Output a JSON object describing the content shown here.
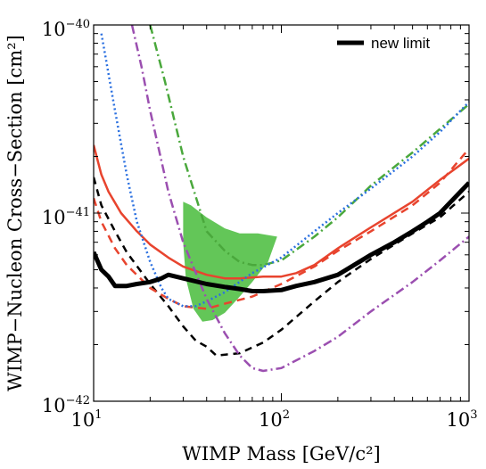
{
  "chart_data": {
    "type": "line",
    "x_scale": "log",
    "y_scale": "log",
    "xlim": [
      10,
      1000
    ],
    "ylim": [
      1e-42,
      1e-40
    ],
    "xlabel": "WIMP Mass [GeV/c²]",
    "ylabel": "WIMP−Nucleon Cross−Section [cm²]",
    "x_ticks": [
      {
        "base": "10",
        "exp": "1",
        "value": 10
      },
      {
        "base": "10",
        "exp": "2",
        "value": 100
      },
      {
        "base": "10",
        "exp": "3",
        "value": 1000
      }
    ],
    "y_ticks": [
      {
        "base": "10",
        "exp": "−42",
        "value": 1e-42
      },
      {
        "base": "10",
        "exp": "−41",
        "value": 1e-41
      },
      {
        "base": "10",
        "exp": "−40",
        "value": 1e-40
      }
    ],
    "grid": false,
    "legend": {
      "position": "top-right",
      "entries": [
        {
          "label": "new limit",
          "series": "new-limit"
        }
      ]
    },
    "series": [
      {
        "id": "new-limit",
        "name": "new limit",
        "color": "#000000",
        "width": 5,
        "dash": "",
        "points": [
          [
            10,
            6.2e-42
          ],
          [
            11,
            5e-42
          ],
          [
            12,
            4.6e-42
          ],
          [
            13,
            4.1e-42
          ],
          [
            15,
            4.1e-42
          ],
          [
            17,
            4.2e-42
          ],
          [
            20,
            4.3e-42
          ],
          [
            23,
            4.5e-42
          ],
          [
            25,
            4.7e-42
          ],
          [
            30,
            4.5e-42
          ],
          [
            40,
            4.2e-42
          ],
          [
            50,
            4.05e-42
          ],
          [
            60,
            3.95e-42
          ],
          [
            70,
            3.85e-42
          ],
          [
            80,
            3.85e-42
          ],
          [
            100,
            3.9e-42
          ],
          [
            120,
            4.1e-42
          ],
          [
            150,
            4.3e-42
          ],
          [
            200,
            4.7e-42
          ],
          [
            300,
            6e-42
          ],
          [
            400,
            7e-42
          ],
          [
            500,
            8e-42
          ],
          [
            600,
            9e-42
          ],
          [
            700,
            1e-41
          ],
          [
            800,
            1.15e-41
          ],
          [
            900,
            1.3e-41
          ],
          [
            1000,
            1.45e-41
          ]
        ]
      },
      {
        "id": "black-dashed",
        "color": "#000000",
        "width": 2.5,
        "dash": "8,6",
        "points": [
          [
            10,
            1.55e-41
          ],
          [
            11,
            1.1e-41
          ],
          [
            13,
            8e-42
          ],
          [
            15,
            6.2e-42
          ],
          [
            20,
            4.2e-42
          ],
          [
            25,
            3.2e-42
          ],
          [
            30,
            2.5e-42
          ],
          [
            35,
            2.1e-42
          ],
          [
            40,
            1.95e-42
          ],
          [
            45,
            1.75e-42
          ],
          [
            60,
            1.8e-42
          ],
          [
            80,
            2.05e-42
          ],
          [
            100,
            2.4e-42
          ],
          [
            150,
            3.4e-42
          ],
          [
            200,
            4.3e-42
          ],
          [
            300,
            5.7e-42
          ],
          [
            500,
            7.8e-42
          ],
          [
            700,
            9.5e-42
          ],
          [
            1000,
            1.3e-41
          ]
        ]
      },
      {
        "id": "orange-solid",
        "color": "#e8442e",
        "width": 2.5,
        "dash": "",
        "points": [
          [
            10,
            2.3e-41
          ],
          [
            11,
            1.6e-41
          ],
          [
            12,
            1.3e-41
          ],
          [
            14,
            1e-41
          ],
          [
            17,
            8e-42
          ],
          [
            20,
            6.8e-42
          ],
          [
            25,
            5.8e-42
          ],
          [
            30,
            5.2e-42
          ],
          [
            40,
            4.7e-42
          ],
          [
            50,
            4.5e-42
          ],
          [
            60,
            4.5e-42
          ],
          [
            80,
            4.6e-42
          ],
          [
            100,
            4.6e-42
          ],
          [
            120,
            4.8e-42
          ],
          [
            150,
            5.3e-42
          ],
          [
            200,
            6.5e-42
          ],
          [
            300,
            8.4e-42
          ],
          [
            500,
            1.15e-41
          ],
          [
            700,
            1.5e-41
          ],
          [
            1000,
            1.95e-41
          ]
        ]
      },
      {
        "id": "orange-dashed",
        "color": "#e8442e",
        "width": 2.5,
        "dash": "9,6",
        "points": [
          [
            10,
            1.2e-41
          ],
          [
            11,
            9e-42
          ],
          [
            13,
            6.5e-42
          ],
          [
            15,
            5.3e-42
          ],
          [
            20,
            4e-42
          ],
          [
            25,
            3.5e-42
          ],
          [
            30,
            3.2e-42
          ],
          [
            40,
            3.1e-42
          ],
          [
            50,
            3.3e-42
          ],
          [
            70,
            3.6e-42
          ],
          [
            100,
            4.2e-42
          ],
          [
            150,
            5.2e-42
          ],
          [
            200,
            6.3e-42
          ],
          [
            300,
            8e-42
          ],
          [
            500,
            1.1e-41
          ],
          [
            700,
            1.45e-41
          ],
          [
            1000,
            2.2e-41
          ]
        ]
      },
      {
        "id": "green-dashdot",
        "color": "#4aa83c",
        "width": 2.5,
        "dash": "10,4,2,4",
        "points": [
          [
            20,
            1e-40
          ],
          [
            24,
            5e-41
          ],
          [
            30,
            2e-41
          ],
          [
            40,
            8e-42
          ],
          [
            50,
            6.3e-42
          ],
          [
            60,
            5.5e-42
          ],
          [
            70,
            5.3e-42
          ],
          [
            80,
            5.3e-42
          ],
          [
            100,
            5.6e-42
          ],
          [
            150,
            7.5e-42
          ],
          [
            200,
            9.5e-42
          ],
          [
            300,
            1.4e-41
          ],
          [
            500,
            2.1e-41
          ],
          [
            700,
            2.8e-41
          ],
          [
            1000,
            3.8e-41
          ]
        ]
      },
      {
        "id": "blue-dotted",
        "color": "#2b70e0",
        "width": 2.5,
        "dash": "2,3",
        "points": [
          [
            11,
            9e-41
          ],
          [
            13,
            3.5e-41
          ],
          [
            15,
            1.6e-41
          ],
          [
            17,
            9e-42
          ],
          [
            20,
            5.5e-42
          ],
          [
            23,
            4e-42
          ],
          [
            25,
            3.5e-42
          ],
          [
            30,
            3.2e-42
          ],
          [
            35,
            3.2e-42
          ],
          [
            40,
            3.4e-42
          ],
          [
            50,
            3.8e-42
          ],
          [
            70,
            4.8e-42
          ],
          [
            100,
            5.8e-42
          ],
          [
            150,
            8e-42
          ],
          [
            200,
            1e-41
          ],
          [
            300,
            1.35e-41
          ],
          [
            500,
            2e-41
          ],
          [
            700,
            2.7e-41
          ],
          [
            1000,
            3.9e-41
          ]
        ]
      },
      {
        "id": "purple-dashdot",
        "color": "#9b4fb0",
        "width": 2.5,
        "dash": "10,4,2,4",
        "points": [
          [
            16,
            1e-40
          ],
          [
            18,
            6e-41
          ],
          [
            20,
            3.5e-41
          ],
          [
            25,
            1.3e-41
          ],
          [
            30,
            7e-42
          ],
          [
            40,
            3.5e-42
          ],
          [
            50,
            2.3e-42
          ],
          [
            60,
            1.75e-42
          ],
          [
            70,
            1.5e-42
          ],
          [
            80,
            1.45e-42
          ],
          [
            100,
            1.5e-42
          ],
          [
            150,
            1.85e-42
          ],
          [
            200,
            2.2e-42
          ],
          [
            300,
            3e-42
          ],
          [
            500,
            4.3e-42
          ],
          [
            700,
            5.6e-42
          ],
          [
            1000,
            7.5e-42
          ]
        ]
      }
    ],
    "regions": [
      {
        "id": "green-region",
        "color": "#3cb82e",
        "opacity": 0.8,
        "points": [
          [
            30,
            1.15e-41
          ],
          [
            33,
            1.1e-41
          ],
          [
            40,
            9.5e-42
          ],
          [
            50,
            8.3e-42
          ],
          [
            60,
            7.8e-42
          ],
          [
            75,
            7.8e-42
          ],
          [
            95,
            7.5e-42
          ],
          [
            85,
            5.5e-42
          ],
          [
            70,
            4.3e-42
          ],
          [
            60,
            3.6e-42
          ],
          [
            50,
            2.95e-42
          ],
          [
            43,
            2.7e-42
          ],
          [
            38,
            2.65e-42
          ],
          [
            34,
            3.1e-42
          ],
          [
            31,
            4.5e-42
          ],
          [
            30,
            7e-42
          ]
        ]
      }
    ]
  }
}
